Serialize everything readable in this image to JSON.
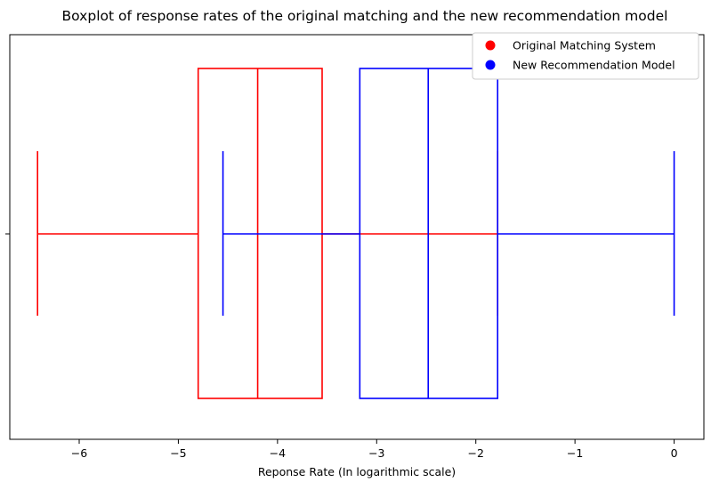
{
  "chart_data": {
    "type": "boxplot",
    "title": "Boxplot of response rates of the original matching and the new recommendation model",
    "xlabel": "Reponse Rate (In logarithmic scale)",
    "ylabel": "",
    "xlim": [
      -6.7,
      0.3
    ],
    "xticks": [
      -6,
      -5,
      -4,
      -3,
      -2,
      -1,
      0
    ],
    "xtick_labels": [
      "−6",
      "−5",
      "−4",
      "−3",
      "−2",
      "−1",
      "0"
    ],
    "grid": false,
    "legend_position": "top-right",
    "series": [
      {
        "name": "Original Matching System",
        "color": "#ff0000",
        "whisker_low": -6.42,
        "q1": -4.8,
        "median": -4.2,
        "q3": -3.55,
        "whisker_high": -1.78
      },
      {
        "name": "New Recommendation Model",
        "color": "#0000ff",
        "whisker_low": -4.55,
        "q1": -3.17,
        "median": -2.48,
        "q3": -1.78,
        "whisker_high": 0.0
      }
    ]
  }
}
